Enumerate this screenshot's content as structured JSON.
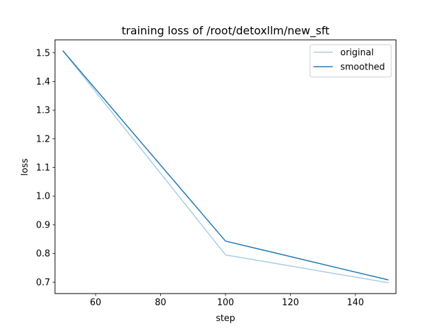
{
  "chart_data": {
    "type": "line",
    "title": "training loss of /root/detoxllm/new_sft",
    "xlabel": "step",
    "ylabel": "loss",
    "xlim": [
      47.5,
      152.5
    ],
    "ylim": [
      0.66,
      1.545
    ],
    "xticks": [
      60,
      80,
      100,
      120,
      140
    ],
    "yticks": [
      0.7,
      0.8,
      0.9,
      1.0,
      1.1,
      1.2,
      1.3,
      1.4,
      1.5
    ],
    "ytick_labels": [
      "0.7",
      "0.8",
      "0.9",
      "1.0",
      "1.1",
      "1.2",
      "1.3",
      "1.4",
      "1.5"
    ],
    "grid": false,
    "legend_position": "upper right",
    "x": [
      50,
      100,
      150
    ],
    "series": [
      {
        "name": "original",
        "values": [
          1.506,
          0.795,
          0.698
        ],
        "color": "#a6cde3"
      },
      {
        "name": "smoothed",
        "values": [
          1.506,
          0.843,
          0.708
        ],
        "color": "#1f78b4"
      }
    ]
  }
}
